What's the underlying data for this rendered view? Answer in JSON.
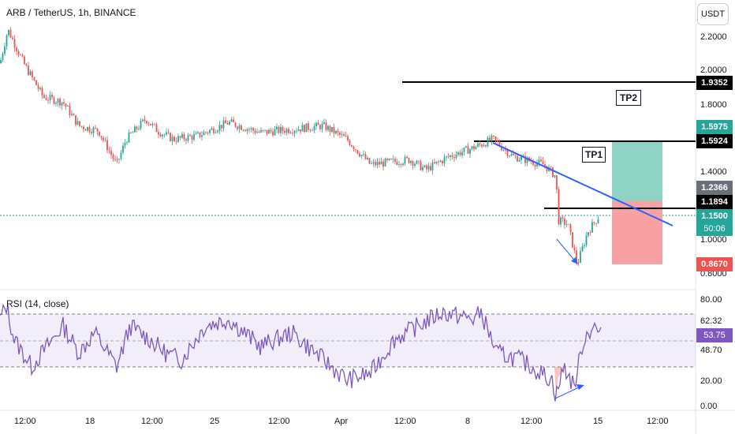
{
  "header": {
    "title": "ARB / TetherUS, 1h, BINANCE",
    "currency": "USDT"
  },
  "price_axis": {
    "ticks": [
      "2.2000",
      "2.0000",
      "1.8000",
      "1.4000",
      "1.0000",
      "0.8000"
    ]
  },
  "price_tags": {
    "tp2": "1.9352",
    "target": "1.5975",
    "tp1": "1.5924",
    "mid": "1.2366",
    "entry": "1.1894",
    "current": "1.1500",
    "countdown": "50:06",
    "stop": "0.8670"
  },
  "annotations": {
    "tp1_label": "TP1",
    "tp2_label": "TP2"
  },
  "rsi": {
    "title": "RSI (14, close)",
    "ticks": [
      "80.00",
      "62.32",
      "48.70",
      "20.00",
      "0.00"
    ],
    "current": "53.75"
  },
  "time_axis": {
    "labels": [
      "12:00",
      "18",
      "12:00",
      "25",
      "12:00",
      "Apr",
      "12:00",
      "8",
      "12:00",
      "15",
      "12:00"
    ]
  },
  "colors": {
    "up": "#26a69a",
    "down": "#ef5350",
    "trendline": "#2962ff",
    "rsi_line": "#7e57c2",
    "profit_zone": "#8fd3c4",
    "loss_zone": "#f7a1a4"
  },
  "chart_data": {
    "type": "candlestick",
    "price_path": [
      [
        0,
        2.05
      ],
      [
        10,
        2.25
      ],
      [
        30,
        2.05
      ],
      [
        55,
        1.85
      ],
      [
        80,
        1.82
      ],
      [
        100,
        1.68
      ],
      [
        125,
        1.65
      ],
      [
        148,
        1.45
      ],
      [
        160,
        1.6
      ],
      [
        185,
        1.72
      ],
      [
        200,
        1.65
      ],
      [
        220,
        1.6
      ],
      [
        250,
        1.62
      ],
      [
        290,
        1.7
      ],
      [
        330,
        1.64
      ],
      [
        370,
        1.66
      ],
      [
        410,
        1.68
      ],
      [
        440,
        1.6
      ],
      [
        470,
        1.45
      ],
      [
        520,
        1.48
      ],
      [
        540,
        1.42
      ],
      [
        570,
        1.5
      ],
      [
        600,
        1.55
      ],
      [
        625,
        1.6
      ],
      [
        650,
        1.5
      ],
      [
        690,
        1.45
      ],
      [
        705,
        1.38
      ],
      [
        708,
        1.12
      ],
      [
        720,
        1.1
      ],
      [
        732,
        0.86
      ],
      [
        745,
        1.05
      ],
      [
        760,
        1.15
      ]
    ],
    "rsi_path": [
      [
        0,
        65
      ],
      [
        8,
        75
      ],
      [
        18,
        50
      ],
      [
        40,
        30
      ],
      [
        60,
        45
      ],
      [
        80,
        60
      ],
      [
        100,
        40
      ],
      [
        120,
        55
      ],
      [
        148,
        30
      ],
      [
        165,
        60
      ],
      [
        190,
        50
      ],
      [
        210,
        40
      ],
      [
        230,
        35
      ],
      [
        260,
        60
      ],
      [
        290,
        65
      ],
      [
        330,
        45
      ],
      [
        370,
        55
      ],
      [
        400,
        40
      ],
      [
        440,
        20
      ],
      [
        470,
        25
      ],
      [
        500,
        50
      ],
      [
        530,
        60
      ],
      [
        560,
        70
      ],
      [
        600,
        65
      ],
      [
        610,
        70
      ],
      [
        630,
        40
      ],
      [
        660,
        35
      ],
      [
        700,
        20
      ],
      [
        705,
        8
      ],
      [
        715,
        30
      ],
      [
        728,
        15
      ],
      [
        740,
        50
      ],
      [
        752,
        60
      ],
      [
        762,
        53.75
      ]
    ]
  }
}
